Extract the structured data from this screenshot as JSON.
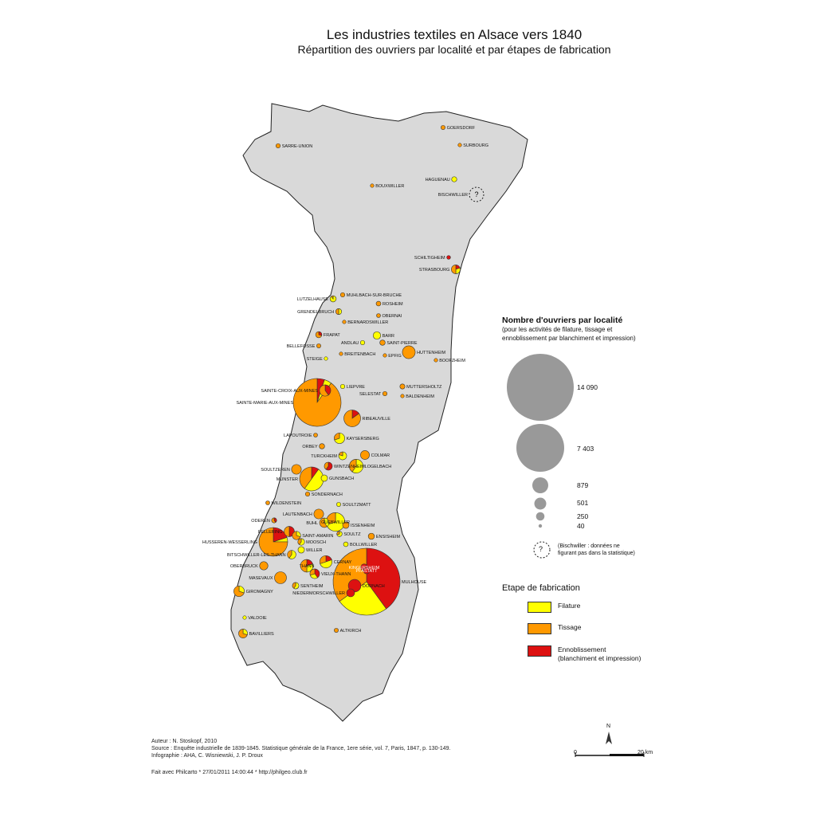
{
  "title": "Les industries textiles en Alsace vers 1840",
  "subtitle": "Répartition des ouvriers par localité et par étapes de fabrication",
  "colors": {
    "filature": "#ffff00",
    "tissage": "#ff9900",
    "ennoblissement": "#dd1111",
    "region": "#d9d9d9",
    "border": "#222222",
    "size_circle": "#999999"
  },
  "legend": {
    "size_title": "Nombre d'ouvriers par localité",
    "size_subtitle_1": "(pour les activités de filature, tissage et",
    "size_subtitle_2": "ennoblissement par blanchiment et impression)",
    "sizes": [
      "14 090",
      "7 403",
      "879",
      "501",
      "250",
      "40"
    ],
    "note_1": "(Bischwiller : données ne",
    "note_2": "figurant pas dans la statistique)",
    "note_symbol": "?",
    "stage_title": "Etape de fabrication",
    "stages": {
      "filature": "Filature",
      "tissage": "Tissage",
      "enno_1": "Ennoblissement",
      "enno_2": "(blanchiment et impression)"
    }
  },
  "credits": {
    "author": "Auteur : N. Stoskopf, 2010",
    "source": "Source : Enquête industrielle de 1839-1845. Statistique générale de la France, 1ere série, vol. 7, Paris, 1847, p. 130-149.",
    "infographie": "Infographie : AHA, C. Wisniewski, J. P. Droux",
    "made_with": "Fait avec Philcarto * 27/01/2011 14:00:44 * http://philgeo.club.fr"
  },
  "scale": {
    "north": "N",
    "start": "0",
    "end": "20 km"
  },
  "localities": [
    {
      "name": "GOERSDORF",
      "workers": 55,
      "f": 0,
      "t": 1,
      "e": 0
    },
    {
      "name": "SARRE-UNION",
      "workers": 60,
      "f": 0,
      "t": 1,
      "e": 0
    },
    {
      "name": "SURBOURG",
      "workers": 40,
      "f": 0,
      "t": 1,
      "e": 0
    },
    {
      "name": "HAGUENAU",
      "workers": 85,
      "f": 1,
      "t": 0,
      "e": 0
    },
    {
      "name": "BOUXWILLER",
      "workers": 40,
      "f": 0,
      "t": 1,
      "e": 0
    },
    {
      "name": "BISCHWILLER",
      "workers": null,
      "f": 0,
      "t": 0,
      "e": 0
    },
    {
      "name": "SCHILTIGHEIM",
      "workers": 45,
      "f": 0,
      "t": 0,
      "e": 1
    },
    {
      "name": "STRASBOURG",
      "workers": 250,
      "f": 0.3,
      "t": 0.5,
      "e": 0.2
    },
    {
      "name": "LUTZELHAUSE",
      "workers": 120,
      "f": 0.9,
      "t": 0.1,
      "e": 0
    },
    {
      "name": "MUHLBACH-SUR-BRUCHE",
      "workers": 60,
      "f": 0,
      "t": 1,
      "e": 0
    },
    {
      "name": "ROSHEIM",
      "workers": 70,
      "f": 0,
      "t": 1,
      "e": 0
    },
    {
      "name": "GRENDELBRUCH",
      "workers": 110,
      "f": 0.5,
      "t": 0.5,
      "e": 0
    },
    {
      "name": "BERNARDSWILLER",
      "workers": 40,
      "f": 0,
      "t": 1,
      "e": 0
    },
    {
      "name": "OBERNAI",
      "workers": 50,
      "f": 0,
      "t": 1,
      "e": 0
    },
    {
      "name": "BARR",
      "workers": 180,
      "f": 1,
      "t": 0,
      "e": 0
    },
    {
      "name": "FRAPAT",
      "workers": 120,
      "f": 0,
      "t": 0.7,
      "e": 0.3
    },
    {
      "name": "ANDLAU",
      "workers": 60,
      "f": 1,
      "t": 0,
      "e": 0
    },
    {
      "name": "SAINT-PIERRE",
      "workers": 90,
      "f": 0,
      "t": 1,
      "e": 0
    },
    {
      "name": "BELLEFOSSE",
      "workers": 55,
      "f": 0,
      "t": 1,
      "e": 0
    },
    {
      "name": "HUTTENHEIM",
      "workers": 520,
      "f": 0,
      "t": 1,
      "e": 0
    },
    {
      "name": "BREITENBACH",
      "workers": 40,
      "f": 0,
      "t": 1,
      "e": 0
    },
    {
      "name": "EPFIG",
      "workers": 40,
      "f": 0,
      "t": 1,
      "e": 0
    },
    {
      "name": "STEIGE",
      "workers": 40,
      "f": 1,
      "t": 0,
      "e": 0
    },
    {
      "name": "BOOFZHEIM",
      "workers": 40,
      "f": 0,
      "t": 1,
      "e": 0
    },
    {
      "name": "LIEPVRE",
      "workers": 60,
      "f": 1,
      "t": 0,
      "e": 0
    },
    {
      "name": "MUTTERSHOLTZ",
      "workers": 80,
      "f": 0,
      "t": 1,
      "e": 0
    },
    {
      "name": "SELESTAT",
      "workers": 60,
      "f": 0,
      "t": 1,
      "e": 0
    },
    {
      "name": "BALDENHEIM",
      "workers": 40,
      "f": 0,
      "t": 1,
      "e": 0
    },
    {
      "name": "SAINTE-CROIX-AUX-MINES",
      "workers": 400,
      "f": 0,
      "t": 0.6,
      "e": 0.4
    },
    {
      "name": "SAINTE-MARIE-AUX-MINES",
      "workers": 7403,
      "f": 0.05,
      "t": 0.9,
      "e": 0.05
    },
    {
      "name": "RIBEAUVILLE",
      "workers": 880,
      "f": 0,
      "t": 0.85,
      "e": 0.15
    },
    {
      "name": "LAPOUTROIE",
      "workers": 50,
      "f": 0,
      "t": 1,
      "e": 0
    },
    {
      "name": "KAYSERSBERG",
      "workers": 350,
      "f": 0.7,
      "t": 0.3,
      "e": 0
    },
    {
      "name": "ORBEY",
      "workers": 90,
      "f": 0,
      "t": 1,
      "e": 0
    },
    {
      "name": "COLMAR",
      "workers": 250,
      "f": 0,
      "t": 1,
      "e": 0
    },
    {
      "name": "TURCKHEIM",
      "workers": 200,
      "f": 0.8,
      "t": 0.2,
      "e": 0
    },
    {
      "name": "LOGELBACH",
      "workers": 600,
      "f": 0.6,
      "t": 0.4,
      "e": 0
    },
    {
      "name": "WINTZENHEIM",
      "workers": 200,
      "f": 0,
      "t": 0.4,
      "e": 0.6
    },
    {
      "name": "SOULTZEREN",
      "workers": 300,
      "f": 0,
      "t": 1,
      "e": 0
    },
    {
      "name": "GUNSBACH",
      "workers": 130,
      "f": 1,
      "t": 0,
      "e": 0
    },
    {
      "name": "MUNSTER",
      "workers": 1400,
      "f": 0.5,
      "t": 0.4,
      "e": 0.1
    },
    {
      "name": "SONDERNACH",
      "workers": 60,
      "f": 0,
      "t": 1,
      "e": 0
    },
    {
      "name": "WILDENSTEIN",
      "workers": 50,
      "f": 0,
      "t": 1,
      "e": 0
    },
    {
      "name": "SOULTZMATT",
      "workers": 55,
      "f": 1,
      "t": 0,
      "e": 0
    },
    {
      "name": "LAUTENBACH",
      "workers": 300,
      "f": 0,
      "t": 1,
      "e": 0
    },
    {
      "name": "BUHL",
      "workers": 280,
      "f": 0.4,
      "t": 0.6,
      "e": 0
    },
    {
      "name": "GUEBWILLER",
      "workers": 1100,
      "f": 0.7,
      "t": 0.3,
      "e": 0
    },
    {
      "name": "ODEREN",
      "workers": 80,
      "f": 0,
      "t": 0.6,
      "e": 0.4
    },
    {
      "name": "FELLERING",
      "workers": 330,
      "f": 0,
      "t": 0.5,
      "e": 0.5
    },
    {
      "name": "ISSENHEIM",
      "workers": 130,
      "f": 0,
      "t": 1,
      "e": 0
    },
    {
      "name": "SAINT-AMARIN",
      "workers": 220,
      "f": 0.3,
      "t": 0.7,
      "e": 0
    },
    {
      "name": "SOULTZ",
      "workers": 90,
      "f": 0.7,
      "t": 0.3,
      "e": 0
    },
    {
      "name": "ENSISHEIM",
      "workers": 120,
      "f": 0,
      "t": 1,
      "e": 0
    },
    {
      "name": "HUSSEREN-WESSERLING",
      "workers": 1600,
      "f": 0.05,
      "t": 0.75,
      "e": 0.2
    },
    {
      "name": "MOOSCH",
      "workers": 140,
      "f": 0.6,
      "t": 0.4,
      "e": 0
    },
    {
      "name": "WILLER",
      "workers": 130,
      "f": 1,
      "t": 0,
      "e": 0
    },
    {
      "name": "BOLLWILLER",
      "workers": 70,
      "f": 1,
      "t": 0,
      "e": 0
    },
    {
      "name": "BITSCHWILLER-LES-THANN",
      "workers": 230,
      "f": 0.6,
      "t": 0.4,
      "e": 0
    },
    {
      "name": "THANN",
      "workers": 500,
      "f": 0.3,
      "t": 0.5,
      "e": 0.2
    },
    {
      "name": "CERNAY",
      "workers": 480,
      "f": 0.5,
      "t": 0.3,
      "e": 0.2
    },
    {
      "name": "OBERBRUCK",
      "workers": 220,
      "f": 0,
      "t": 1,
      "e": 0
    },
    {
      "name": "KINGERSHEIM",
      "workers": 150,
      "f": 0,
      "t": 0,
      "e": 1
    },
    {
      "name": "PFASTATT",
      "workers": 130,
      "f": 0,
      "t": 0,
      "e": 1
    },
    {
      "name": "MASEVAUX",
      "workers": 450,
      "f": 0,
      "t": 1,
      "e": 0
    },
    {
      "name": "VIEUX-THANN",
      "workers": 290,
      "f": 0.3,
      "t": 0.3,
      "e": 0.4
    },
    {
      "name": "SENTHEIM",
      "workers": 130,
      "f": 0.6,
      "t": 0.4,
      "e": 0
    },
    {
      "name": "DORNACH",
      "workers": 500,
      "f": 0,
      "t": 0,
      "e": 1
    },
    {
      "name": "MULHOUSE",
      "workers": 14090,
      "f": 0.25,
      "t": 0.35,
      "e": 0.4
    },
    {
      "name": "GIROMAGNY",
      "workers": 350,
      "f": 0.3,
      "t": 0.7,
      "e": 0
    },
    {
      "name": "NIEDERMORSCHWILLER",
      "workers": 200,
      "f": 0,
      "t": 0,
      "e": 1
    },
    {
      "name": "VALDOIE",
      "workers": 40,
      "f": 1,
      "t": 0,
      "e": 0
    },
    {
      "name": "ALTKIRCH",
      "workers": 55,
      "f": 0,
      "t": 1,
      "e": 0
    },
    {
      "name": "BAVILLIERS",
      "workers": 250,
      "f": 0.3,
      "t": 0.7,
      "e": 0
    }
  ]
}
